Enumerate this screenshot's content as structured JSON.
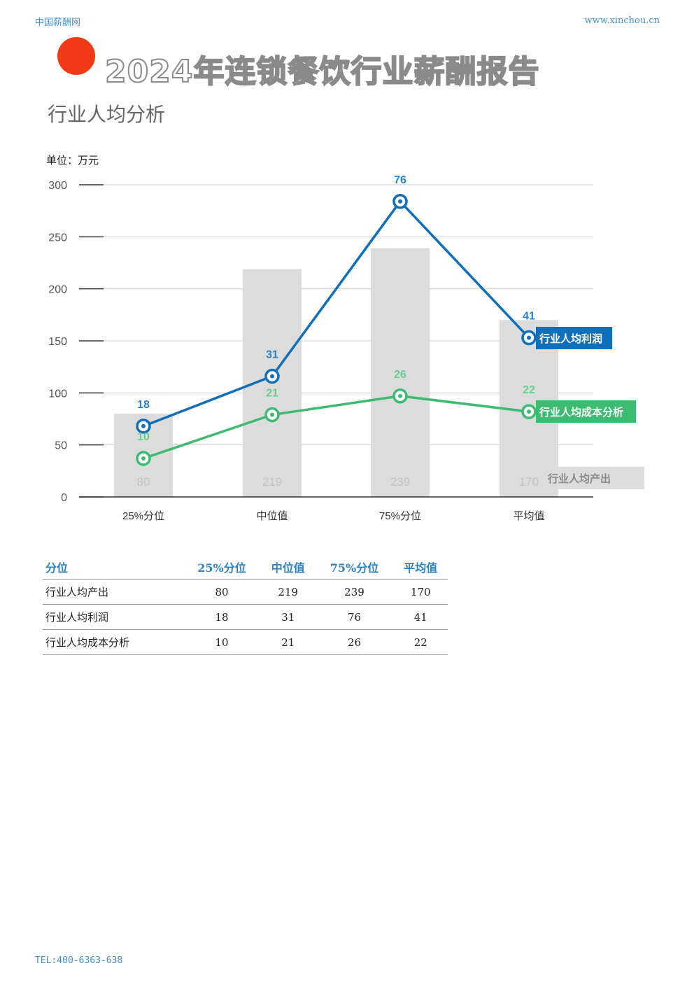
{
  "header": {
    "site_name": "中国薪酬网",
    "site_url": "www.xinchou.cn"
  },
  "title": "2024年连锁餐饮行业薪酬报告",
  "subtitle": "行业人均分析",
  "footer": {
    "tel": "TEL:400-6363-638"
  },
  "colors": {
    "accent_dot": "#f03a17",
    "bar": "#dcdcdc",
    "profit": "#0f6fbb",
    "cost": "#3dbb70",
    "table_header": "#2a83c7"
  },
  "chart_data": {
    "type": "bar",
    "unit_label": "单位：万元",
    "categories": [
      "25%分位",
      "中位值",
      "75%分位",
      "平均值"
    ],
    "ylim": [
      0,
      300
    ],
    "yticks": [
      0,
      50,
      100,
      150,
      200,
      250,
      300
    ],
    "grid": true,
    "series": [
      {
        "name": "行业人均产出",
        "type": "bar",
        "values": [
          80,
          219,
          239,
          170
        ],
        "labels": [
          "80",
          "219",
          "239",
          "170"
        ],
        "color": "#dcdcdc"
      },
      {
        "name": "行业人均利润",
        "type": "line",
        "values": [
          68,
          116,
          284,
          153
        ],
        "labels": [
          "18",
          "31",
          "76",
          "41"
        ],
        "color": "#0f6fbb"
      },
      {
        "name": "行业人均成本分析",
        "type": "line",
        "values": [
          37,
          79,
          97,
          82
        ],
        "labels": [
          "10",
          "21",
          "26",
          "22"
        ],
        "color": "#3dbb70"
      }
    ]
  },
  "table": {
    "headers": [
      "分位",
      "25%分位",
      "中位值",
      "75%分位",
      "平均值"
    ],
    "rows": [
      [
        "行业人均产出",
        "80",
        "219",
        "239",
        "170"
      ],
      [
        "行业人均利润",
        "18",
        "31",
        "76",
        "41"
      ],
      [
        "行业人均成本分析",
        "10",
        "21",
        "26",
        "22"
      ]
    ]
  }
}
